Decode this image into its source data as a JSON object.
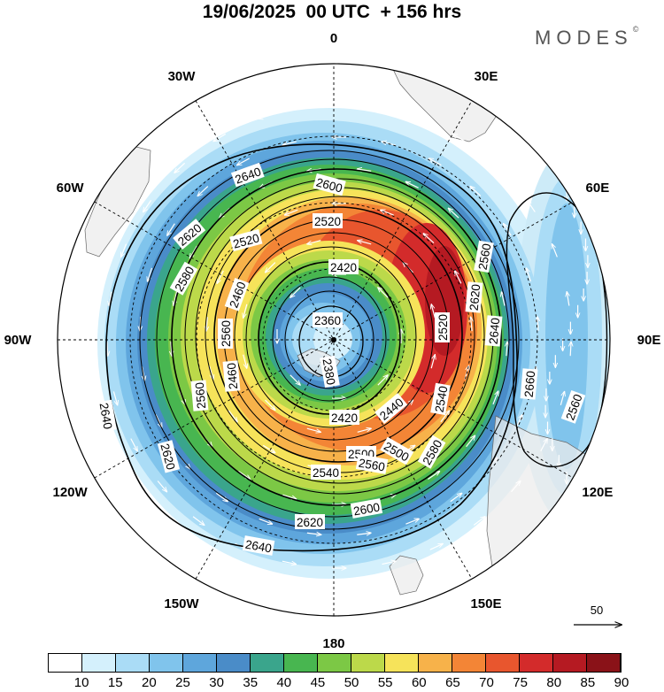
{
  "header": {
    "title": "19/06/2025  00 UTC  + 156 hrs",
    "brand": "MODES",
    "brand_mark": "©"
  },
  "map": {
    "projection": "south polar stereographic",
    "longitude_labels": [
      "0",
      "30E",
      "60E",
      "90E",
      "120E",
      "150E",
      "180",
      "150W",
      "120W",
      "90W",
      "60W",
      "30W"
    ],
    "contour_labels": [
      "2360",
      "2380",
      "2420",
      "2420",
      "2440",
      "2460",
      "2460",
      "2500",
      "2500",
      "2520",
      "2520",
      "2520",
      "2540",
      "2540",
      "2560",
      "2560",
      "2560",
      "2560",
      "2580",
      "2580",
      "2600",
      "2600",
      "2620",
      "2620",
      "2620",
      "2620",
      "2640",
      "2640",
      "2640",
      "2640",
      "2660",
      "2560"
    ],
    "reference_vector": "50"
  },
  "colorbar": {
    "labels": [
      "10",
      "15",
      "20",
      "25",
      "30",
      "35",
      "40",
      "45",
      "50",
      "55",
      "60",
      "65",
      "70",
      "75",
      "80",
      "85",
      "90"
    ],
    "colors": [
      "#ffffff",
      "#d4f0fc",
      "#aadcf6",
      "#80c4ec",
      "#5ea6dc",
      "#4a8cc8",
      "#3aa58c",
      "#48b650",
      "#7cc845",
      "#bcd94a",
      "#f6e35a",
      "#f7b24a",
      "#f38536",
      "#e8562e",
      "#d32b2b",
      "#b51a22",
      "#8a1218"
    ]
  }
}
